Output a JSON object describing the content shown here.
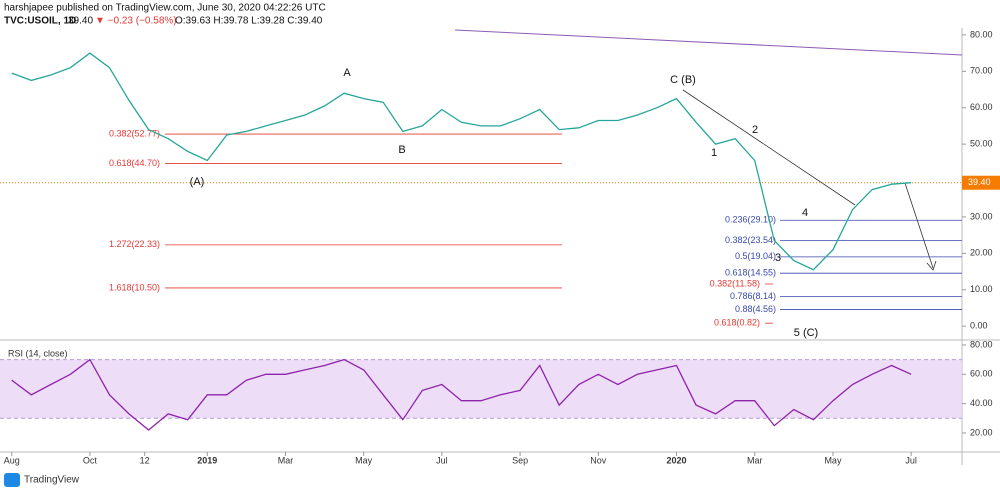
{
  "header": {
    "line1": "harshjapee published on TradingView.com, June 30, 2020 04:22:26 UTC",
    "symbol": "TVC:USOIL, 1D",
    "last": "39.40",
    "change": "▼ −0.23 (−0.58%)",
    "ohlc": "O:39.63 H:39.78 L:39.28 C:39.40"
  },
  "footer": "TradingView",
  "chart_data": [
    {
      "type": "line",
      "name": "TVC:USOIL",
      "xlim": [
        -0.3,
        24.3
      ],
      "xticks": [
        {
          "value": 0,
          "label": "Aug"
        },
        {
          "value": 2,
          "label": "Oct"
        },
        {
          "value": 3.4,
          "label": "12"
        },
        {
          "value": 5,
          "label": "2019"
        },
        {
          "value": 7,
          "label": "Mar"
        },
        {
          "value": 9,
          "label": "May"
        },
        {
          "value": 11,
          "label": "Jul"
        },
        {
          "value": 13,
          "label": "Sep"
        },
        {
          "value": 15,
          "label": "Nov"
        },
        {
          "value": 17,
          "label": "2020"
        },
        {
          "value": 19,
          "label": "Mar"
        },
        {
          "value": 21,
          "label": "May"
        },
        {
          "value": 23,
          "label": "Jul"
        }
      ],
      "ylim": [
        -3.8,
        81.9
      ],
      "yticks": [
        {
          "value": 0,
          "label": "0.00"
        },
        {
          "value": 10,
          "label": "10.00"
        },
        {
          "value": 20,
          "label": "20.00"
        },
        {
          "value": 30,
          "label": "30.00"
        },
        {
          "value": 40,
          "label": "40.00"
        },
        {
          "value": 50,
          "label": "50.00"
        },
        {
          "value": 60,
          "label": "60.00"
        },
        {
          "value": 70,
          "label": "70.00"
        },
        {
          "value": 80,
          "label": "80.00"
        }
      ],
      "color": "#26a69a",
      "x": [
        0,
        0.5,
        1,
        1.5,
        2,
        2.5,
        3,
        3.5,
        4,
        4.5,
        5,
        5.5,
        6,
        6.5,
        7,
        7.5,
        8,
        8.5,
        9,
        9.5,
        10,
        10.5,
        11,
        11.5,
        12,
        12.5,
        13,
        13.5,
        14,
        14.5,
        15,
        15.5,
        16,
        16.5,
        17,
        17.5,
        18,
        18.5,
        19,
        19.5,
        20,
        20.5,
        21,
        21.5,
        22,
        22.5,
        23
      ],
      "values": [
        69.5,
        67.5,
        69,
        71,
        75,
        71,
        62,
        54,
        51.5,
        48,
        45.5,
        52.5,
        53.5,
        55,
        56.5,
        58,
        60.5,
        64,
        62.5,
        61.5,
        53.5,
        55,
        59.5,
        56,
        55,
        55,
        57,
        59.5,
        54,
        54.5,
        56.5,
        56.5,
        58,
        60,
        62.5,
        56,
        50,
        51.5,
        45.5,
        23.5,
        18,
        15.5,
        21,
        32,
        37.5,
        39,
        39.4
      ],
      "last_price": {
        "value": 39.4,
        "label": "39.40"
      },
      "left_levels": [
        {
          "label": "0.382(52.77)",
          "value": 52.77
        },
        {
          "label": "0.618(44.70)",
          "value": 44.7
        },
        {
          "label": "1.272(22.33)",
          "value": 22.33
        },
        {
          "label": "1.618(10.50)",
          "value": 10.5
        }
      ],
      "mid_levels": [
        {
          "label": "0.382(11.58)",
          "value": 11.58
        },
        {
          "label": "0.618(0.82)",
          "value": 0.82
        }
      ],
      "right_levels": [
        {
          "label": "0.236(29.10)",
          "value": 29.1
        },
        {
          "label": "0.382(23.54)",
          "value": 23.54
        },
        {
          "label": "0.5(19.04)",
          "value": 19.04
        },
        {
          "label": "0.618(14.55)",
          "value": 14.55
        },
        {
          "label": "0.786(8.14)",
          "value": 8.14
        },
        {
          "label": "0.88(4.56)",
          "value": 4.56
        }
      ],
      "wave_labels": [
        "A",
        "B",
        "(A)",
        "C (B)",
        "1",
        "2",
        "3",
        "4",
        "5 (C)"
      ]
    },
    {
      "type": "line",
      "name": "RSI (14, close)",
      "xlim": [
        -0.3,
        24.3
      ],
      "ylim": [
        7,
        82.7
      ],
      "yticks": [
        {
          "value": 20,
          "label": "20.00"
        },
        {
          "value": 40,
          "label": "40.00"
        },
        {
          "value": 60,
          "label": "60.00"
        },
        {
          "value": 80,
          "label": "80.00"
        }
      ],
      "bands": [
        30,
        70
      ],
      "color": "#8e24aa",
      "x": [
        0,
        0.5,
        1,
        1.5,
        2,
        2.5,
        3,
        3.5,
        4,
        4.5,
        5,
        5.5,
        6,
        6.5,
        7,
        7.5,
        8,
        8.5,
        9,
        9.5,
        10,
        10.5,
        11,
        11.5,
        12,
        12.5,
        13,
        13.5,
        14,
        14.5,
        15,
        15.5,
        16,
        16.5,
        17,
        17.5,
        18,
        18.5,
        19,
        19.5,
        20,
        20.5,
        21,
        21.5,
        22,
        22.5,
        23
      ],
      "values": [
        56,
        46,
        53,
        60,
        70,
        46,
        33,
        22,
        33,
        29,
        46,
        46,
        56,
        60,
        60,
        63,
        66,
        70,
        63,
        46,
        29,
        49,
        53,
        42,
        42,
        46,
        49,
        66,
        39,
        53,
        60,
        53,
        60,
        63,
        66,
        39,
        33,
        42,
        42,
        25,
        36,
        29,
        42,
        53,
        60,
        66,
        60
      ]
    }
  ]
}
